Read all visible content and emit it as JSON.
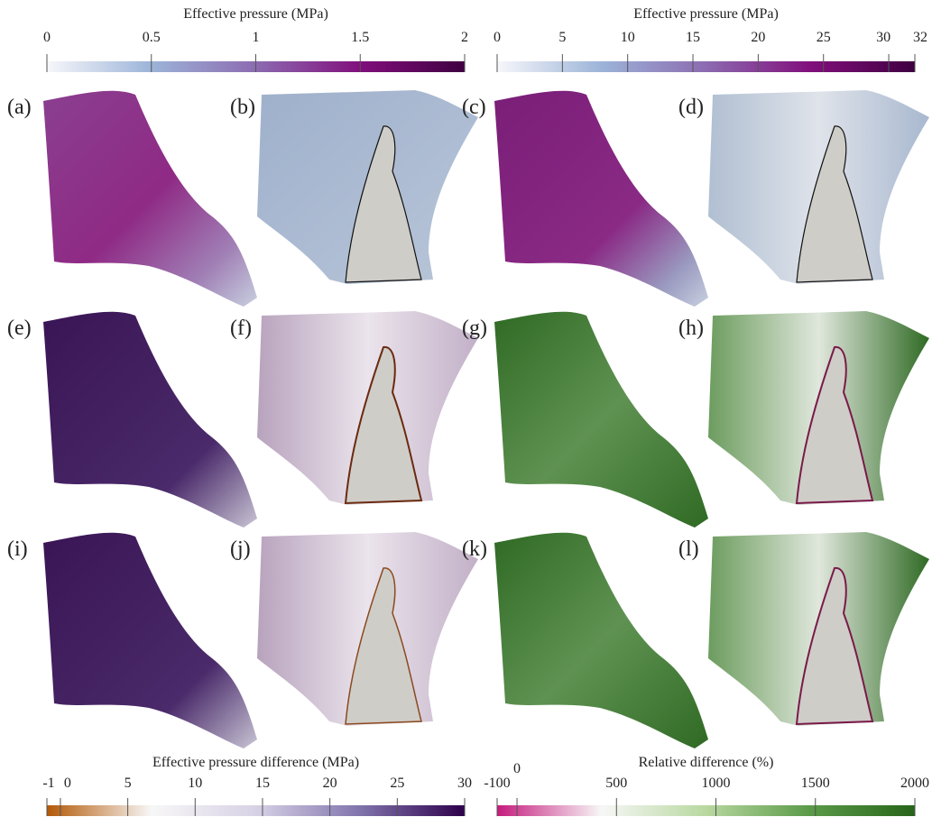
{
  "colorbars": [
    {
      "title": "Effective pressure (MPa)",
      "lim": [
        0,
        2
      ],
      "ticks": [
        0,
        0.5,
        1,
        1.5,
        2
      ],
      "colors": [
        "#f7f7fb",
        "#9cb4d8",
        "#8c6bb1",
        "#810f7c",
        "#3f0040"
      ]
    },
    {
      "title": "Effective pressure (MPa)",
      "lim": [
        0,
        32
      ],
      "ticks": [
        0,
        5,
        10,
        15,
        20,
        25,
        30,
        32
      ],
      "colors": [
        "#f7f7fb",
        "#9cb4d8",
        "#8c6bb1",
        "#810f7c",
        "#3f0040"
      ]
    },
    {
      "title": "Effective pressure difference (MPa)",
      "lim": [
        -1,
        30
      ],
      "ticks": [
        -1,
        0,
        5,
        10,
        15,
        20,
        25,
        30
      ],
      "colors": [
        "#b35806",
        "#f7f7f7",
        "#d8d2e6",
        "#8073ac",
        "#2d004b"
      ]
    },
    {
      "title": "Relative difference (%)",
      "lim": [
        -100,
        2000
      ],
      "ticks": [
        -100,
        0,
        500,
        1000,
        1500,
        2000
      ],
      "colors": [
        "#c51b7d",
        "#f7f7f7",
        "#b8d8a0",
        "#5a9a48",
        "#276419"
      ]
    }
  ],
  "panels": [
    "(a)",
    "(b)",
    "(c)",
    "(d)",
    "(e)",
    "(f)",
    "(g)",
    "(h)",
    "(i)",
    "(j)",
    "(k)",
    "(l)"
  ]
}
